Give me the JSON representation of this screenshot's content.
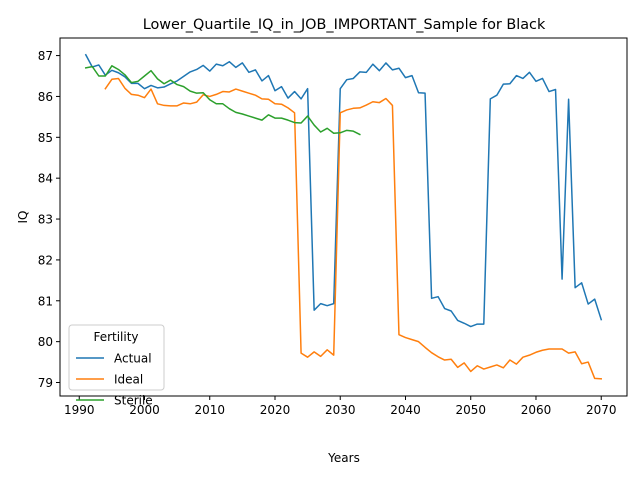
{
  "chart_data": {
    "type": "line",
    "title": "Lower_Quartile_IQ_in_JOB_IMPORTANT_Sample for Black",
    "xlabel": "Years",
    "ylabel": "IQ",
    "xlim": [
      1987.05,
      2073.95
    ],
    "ylim": [
      78.67,
      87.43
    ],
    "x_ticks": [
      1990,
      2000,
      2010,
      2020,
      2030,
      2040,
      2050,
      2060,
      2070
    ],
    "y_ticks": [
      79,
      80,
      81,
      82,
      83,
      84,
      85,
      86,
      87
    ],
    "grid": false,
    "legend": {
      "title": "Fertility",
      "placement": "lower-left"
    },
    "series": [
      {
        "name": "Actual",
        "color": "#1f77b4",
        "x": [
          1991,
          1992,
          1993,
          1994,
          1995,
          1996,
          1997,
          1998,
          1999,
          2000,
          2001,
          2002,
          2003,
          2004,
          2005,
          2006,
          2007,
          2008,
          2009,
          2010,
          2011,
          2012,
          2013,
          2014,
          2015,
          2016,
          2017,
          2018,
          2019,
          2020,
          2021,
          2022,
          2023,
          2024,
          2025,
          2026,
          2027,
          2028,
          2029,
          2030,
          2031,
          2032,
          2033,
          2034,
          2035,
          2036,
          2037,
          2038,
          2039,
          2040,
          2041,
          2042,
          2043,
          2044,
          2045,
          2046,
          2047,
          2048,
          2049,
          2050,
          2051,
          2052,
          2053,
          2054,
          2055,
          2056,
          2057,
          2058,
          2059,
          2060,
          2061,
          2062,
          2063,
          2064,
          2065,
          2066,
          2067,
          2068,
          2069,
          2070
        ],
        "y": [
          87.02,
          86.72,
          86.77,
          86.52,
          86.64,
          86.58,
          86.48,
          86.32,
          86.32,
          86.19,
          86.27,
          86.21,
          86.23,
          86.31,
          86.38,
          86.49,
          86.6,
          86.66,
          86.76,
          86.62,
          86.79,
          86.75,
          86.85,
          86.71,
          86.82,
          86.59,
          86.65,
          86.38,
          86.51,
          86.14,
          86.24,
          85.96,
          86.12,
          85.94,
          86.19,
          80.77,
          80.93,
          80.88,
          80.93,
          86.19,
          86.41,
          86.44,
          86.6,
          86.59,
          86.79,
          86.63,
          86.82,
          86.65,
          86.69,
          86.46,
          86.51,
          86.09,
          86.08,
          81.06,
          81.1,
          80.81,
          80.75,
          80.52,
          80.45,
          80.37,
          80.43,
          80.43,
          85.94,
          86.03,
          86.3,
          86.31,
          86.51,
          86.44,
          86.59,
          86.37,
          86.44,
          86.12,
          86.17,
          81.53,
          85.93,
          81.32,
          81.44,
          80.92,
          81.04,
          80.54
        ]
      },
      {
        "name": "Ideal",
        "color": "#ff7f0e",
        "x": [
          1994,
          1995,
          1996,
          1997,
          1998,
          1999,
          2000,
          2001,
          2002,
          2003,
          2004,
          2005,
          2006,
          2007,
          2008,
          2009,
          2010,
          2011,
          2012,
          2013,
          2014,
          2015,
          2016,
          2017,
          2018,
          2019,
          2020,
          2021,
          2022,
          2023,
          2024,
          2025,
          2026,
          2027,
          2028,
          2029,
          2030,
          2031,
          2032,
          2033,
          2034,
          2035,
          2036,
          2037,
          2038,
          2039,
          2040,
          2041,
          2042,
          2043,
          2044,
          2045,
          2046,
          2047,
          2048,
          2049,
          2050,
          2051,
          2052,
          2053,
          2054,
          2055,
          2056,
          2057,
          2058,
          2059,
          2060,
          2061,
          2062,
          2063,
          2064,
          2065,
          2066,
          2067,
          2068,
          2069,
          2070
        ],
        "y": [
          86.19,
          86.42,
          86.44,
          86.2,
          86.05,
          86.03,
          85.97,
          86.18,
          85.82,
          85.78,
          85.77,
          85.77,
          85.84,
          85.82,
          85.86,
          86.04,
          86.0,
          86.05,
          86.12,
          86.11,
          86.18,
          86.13,
          86.08,
          86.03,
          85.94,
          85.93,
          85.82,
          85.81,
          85.72,
          85.6,
          79.72,
          79.62,
          79.75,
          79.64,
          79.8,
          79.67,
          85.6,
          85.67,
          85.71,
          85.72,
          85.79,
          85.87,
          85.85,
          85.95,
          85.78,
          80.17,
          80.1,
          80.05,
          80.0,
          79.86,
          79.73,
          79.63,
          79.55,
          79.57,
          79.37,
          79.48,
          79.27,
          79.41,
          79.33,
          79.38,
          79.43,
          79.36,
          79.55,
          79.45,
          79.62,
          79.67,
          79.74,
          79.79,
          79.82,
          79.82,
          79.82,
          79.72,
          79.75,
          79.46,
          79.5,
          79.1,
          79.09
        ]
      },
      {
        "name": "Sterile",
        "color": "#2ca02c",
        "x": [
          1991,
          1992,
          1993,
          1994,
          1995,
          1996,
          1997,
          1998,
          1999,
          2000,
          2001,
          2002,
          2003,
          2004,
          2005,
          2006,
          2007,
          2008,
          2009,
          2010,
          2011,
          2012,
          2013,
          2014,
          2015,
          2016,
          2017,
          2018,
          2019,
          2020,
          2021,
          2022,
          2023,
          2024,
          2025,
          2026,
          2027,
          2028,
          2029,
          2030,
          2031,
          2032,
          2033
        ],
        "y": [
          86.7,
          86.73,
          86.5,
          86.5,
          86.75,
          86.66,
          86.53,
          86.34,
          86.37,
          86.5,
          86.63,
          86.43,
          86.31,
          86.4,
          86.29,
          86.24,
          86.13,
          86.08,
          86.09,
          85.92,
          85.82,
          85.82,
          85.7,
          85.61,
          85.57,
          85.52,
          85.47,
          85.42,
          85.55,
          85.47,
          85.47,
          85.42,
          85.36,
          85.35,
          85.52,
          85.3,
          85.13,
          85.22,
          85.1,
          85.11,
          85.17,
          85.15,
          85.07
        ]
      }
    ]
  }
}
